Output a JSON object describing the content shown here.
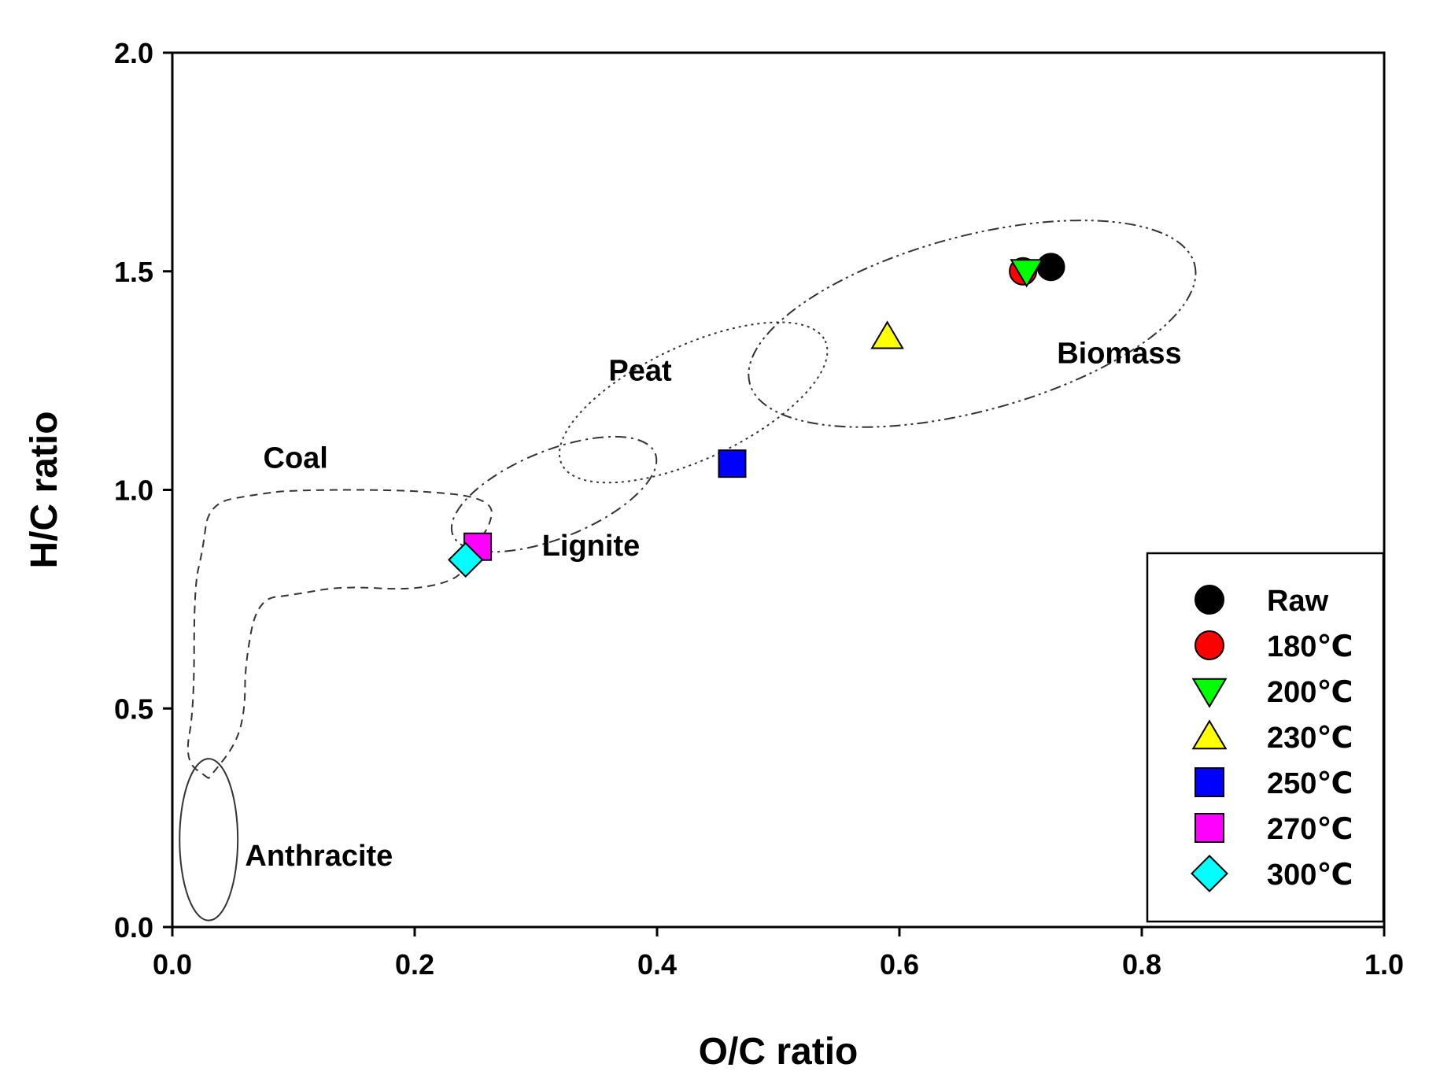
{
  "chart_data": {
    "type": "scatter",
    "title": "",
    "xlabel": "O/C ratio",
    "ylabel": "H/C ratio",
    "xlim": [
      0.0,
      1.0
    ],
    "ylim": [
      0.0,
      2.0
    ],
    "xticks": [
      0.0,
      0.2,
      0.4,
      0.6,
      0.8,
      1.0
    ],
    "xtick_labels": [
      "0.0",
      "0.2",
      "0.4",
      "0.6",
      "0.8",
      "1.0"
    ],
    "yticks": [
      0.0,
      0.5,
      1.0,
      1.5,
      2.0
    ],
    "ytick_labels": [
      "0.0",
      "0.5",
      "1.0",
      "1.5",
      "2.0"
    ],
    "grid": false,
    "legend_position": "bottom-right",
    "series": [
      {
        "name": "Raw",
        "marker": "circle",
        "color": "#000000",
        "x": [
          0.725
        ],
        "y": [
          1.51
        ]
      },
      {
        "name": "180℃",
        "marker": "circle",
        "color": "#ff0000",
        "x": [
          0.702
        ],
        "y": [
          1.5
        ]
      },
      {
        "name": "200℃",
        "marker": "triangle-down",
        "color": "#00ff00",
        "x": [
          0.705
        ],
        "y": [
          1.5
        ]
      },
      {
        "name": "230℃",
        "marker": "triangle-up",
        "color": "#ffff00",
        "x": [
          0.59
        ],
        "y": [
          1.35
        ]
      },
      {
        "name": "250℃",
        "marker": "square",
        "color": "#0000ff",
        "x": [
          0.462
        ],
        "y": [
          1.06
        ]
      },
      {
        "name": "270℃",
        "marker": "square",
        "color": "#ff00ff",
        "x": [
          0.252
        ],
        "y": [
          0.87
        ]
      },
      {
        "name": "300℃",
        "marker": "diamond",
        "color": "#00ffff",
        "x": [
          0.242
        ],
        "y": [
          0.84
        ]
      }
    ],
    "regions": [
      {
        "name": "Anthracite",
        "label": "Anthracite",
        "shape": "ellipse",
        "center": [
          0.03,
          0.2
        ],
        "radii": [
          0.024,
          0.185
        ],
        "angle_deg": 0,
        "stroke": "solid",
        "label_at": [
          0.06,
          0.14
        ]
      },
      {
        "name": "Coal",
        "label": "Coal",
        "shape": "path",
        "stroke": "dashed",
        "label_at": [
          0.075,
          1.05
        ],
        "outline": [
          [
            0.03,
            0.34
          ],
          [
            0.01,
            0.38
          ],
          [
            0.018,
            0.5
          ],
          [
            0.018,
            0.78
          ],
          [
            0.025,
            0.86
          ],
          [
            0.03,
            0.97
          ],
          [
            0.07,
            0.99
          ],
          [
            0.1,
            1.0
          ],
          [
            0.2,
            1.0
          ],
          [
            0.265,
            0.98
          ],
          [
            0.262,
            0.91
          ],
          [
            0.24,
            0.85
          ],
          [
            0.24,
            0.8
          ],
          [
            0.2,
            0.77
          ],
          [
            0.14,
            0.78
          ],
          [
            0.1,
            0.76
          ],
          [
            0.07,
            0.75
          ],
          [
            0.06,
            0.6
          ],
          [
            0.06,
            0.5
          ],
          [
            0.053,
            0.42
          ],
          [
            0.03,
            0.34
          ]
        ]
      },
      {
        "name": "Lignite",
        "label": "Lignite",
        "shape": "ellipse",
        "center": [
          0.315,
          0.99
        ],
        "radii": [
          0.09,
          0.1
        ],
        "angle_deg": -22,
        "stroke": "dashdot",
        "label_at": [
          0.305,
          0.85
        ]
      },
      {
        "name": "Peat",
        "label": "Peat",
        "shape": "ellipse",
        "center": [
          0.43,
          1.2
        ],
        "radii": [
          0.12,
          0.13
        ],
        "angle_deg": -25,
        "stroke": "dotted",
        "label_at": [
          0.36,
          1.25
        ]
      },
      {
        "name": "Biomass",
        "label": "Biomass",
        "shape": "ellipse",
        "center": [
          0.66,
          1.38
        ],
        "radii": [
          0.19,
          0.2
        ],
        "angle_deg": -15,
        "stroke": "dashdotdot",
        "label_at": [
          0.73,
          1.29
        ]
      }
    ]
  }
}
